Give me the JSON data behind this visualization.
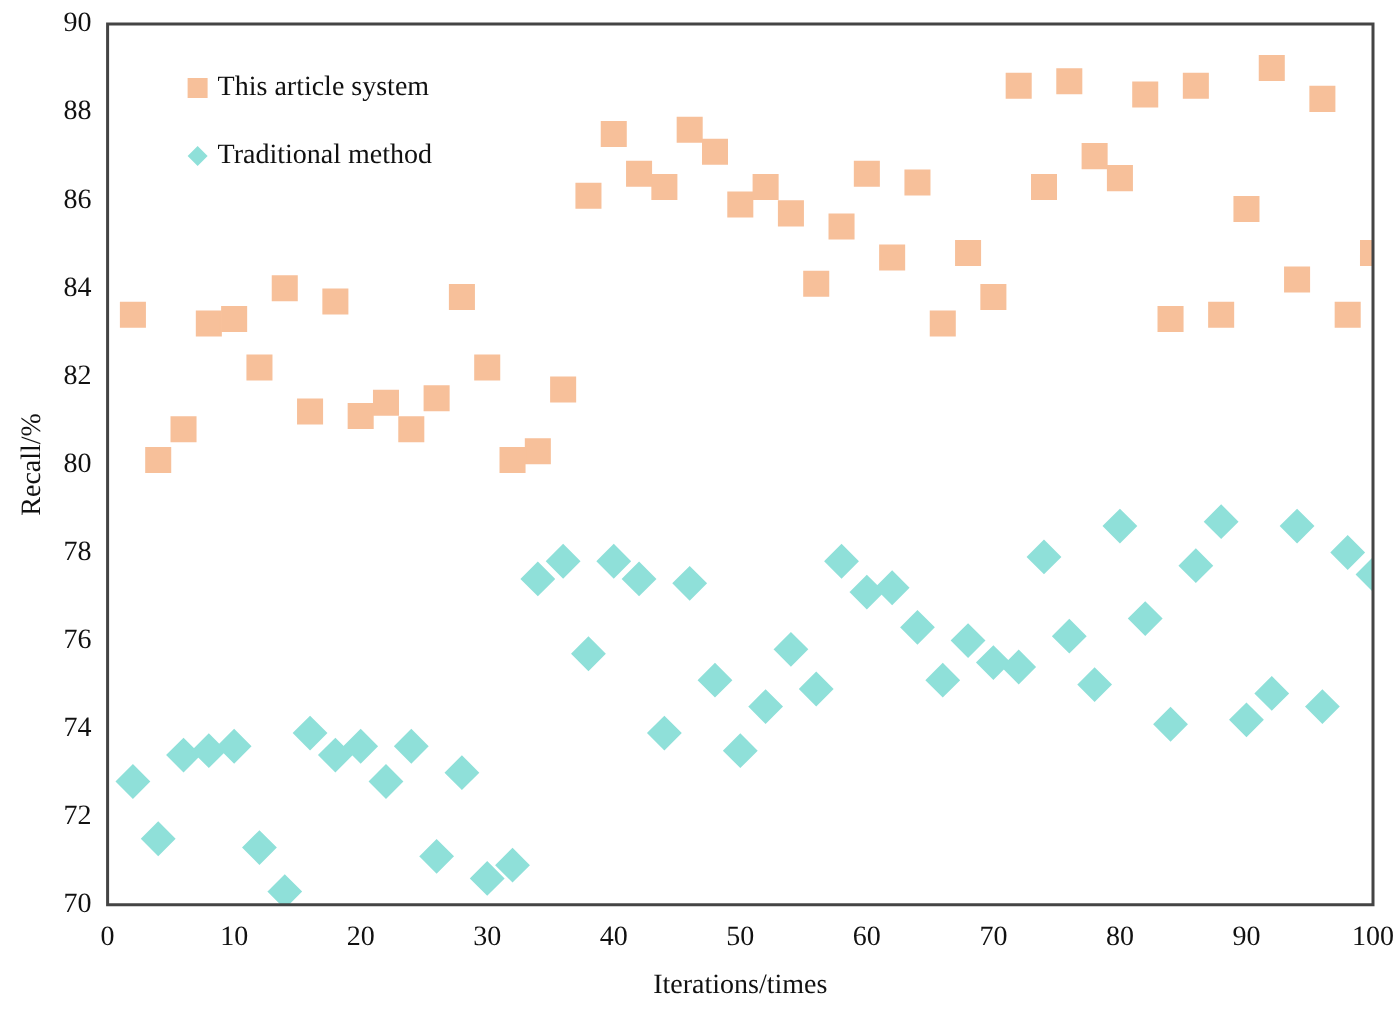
{
  "chart_data": {
    "type": "scatter",
    "xlabel": "Iterations/times",
    "ylabel": "Recall/%",
    "x": [
      2,
      4,
      6,
      8,
      10,
      12,
      14,
      16,
      18,
      20,
      22,
      24,
      26,
      28,
      30,
      32,
      34,
      36,
      38,
      40,
      42,
      44,
      46,
      48,
      50,
      52,
      54,
      56,
      58,
      60,
      62,
      64,
      66,
      68,
      70,
      72,
      74,
      76,
      78,
      80,
      82,
      84,
      86,
      88,
      90,
      92,
      94,
      96,
      98,
      100
    ],
    "series": [
      {
        "name": "This article system",
        "color": "#f7c09a",
        "marker": "square",
        "values": [
          83.4,
          80.1,
          80.8,
          83.2,
          83.3,
          82.2,
          84.0,
          81.2,
          83.7,
          81.1,
          81.4,
          80.8,
          81.5,
          83.8,
          82.2,
          80.1,
          80.3,
          81.7,
          86.1,
          87.5,
          86.6,
          86.3,
          87.6,
          87.1,
          85.9,
          86.3,
          85.7,
          84.1,
          85.4,
          86.6,
          84.7,
          86.4,
          83.2,
          84.8,
          83.8,
          88.6,
          86.3,
          88.7,
          87.0,
          86.5,
          88.4,
          83.3,
          88.6,
          83.4,
          85.8,
          89.0,
          84.2,
          88.3,
          83.4,
          84.8
        ]
      },
      {
        "name": "Traditional method",
        "color": "#8fe0d9",
        "marker": "diamond",
        "values": [
          72.8,
          71.5,
          73.4,
          73.5,
          73.6,
          71.3,
          70.3,
          73.9,
          73.4,
          73.6,
          72.8,
          73.6,
          71.1,
          73.0,
          70.6,
          70.9,
          77.4,
          77.8,
          75.7,
          77.8,
          77.4,
          73.9,
          77.3,
          75.1,
          73.5,
          74.5,
          75.8,
          74.9,
          77.8,
          77.1,
          77.2,
          76.3,
          75.1,
          76.0,
          75.5,
          75.4,
          77.9,
          76.1,
          75.0,
          78.6,
          76.5,
          74.1,
          77.7,
          78.7,
          74.2,
          74.8,
          78.6,
          74.5,
          78.0,
          77.5
        ]
      }
    ],
    "xlim": [
      0,
      100
    ],
    "xticks": [
      0,
      10,
      20,
      30,
      40,
      50,
      60,
      70,
      80,
      90,
      100
    ],
    "ylim": [
      70,
      90
    ],
    "yticks": [
      70,
      72,
      74,
      76,
      78,
      80,
      82,
      84,
      86,
      88,
      90
    ],
    "grid": false,
    "legend": "top left"
  }
}
